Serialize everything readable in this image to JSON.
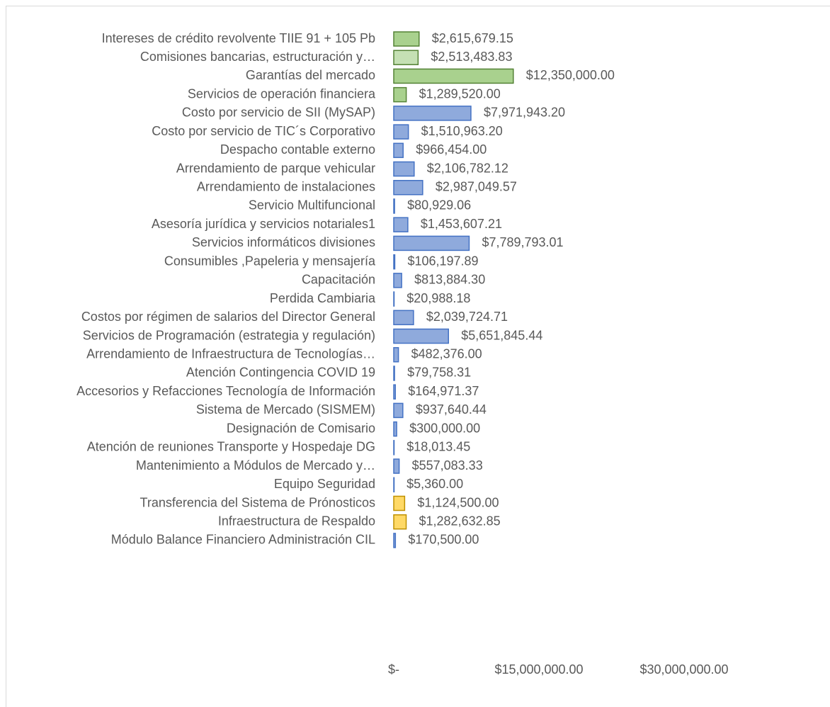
{
  "chart_data": {
    "type": "barh",
    "categories": [
      "Intereses de crédito revolvente TIIE 91 + 105 Pb",
      "Comisiones bancarias,  estructuración y…",
      "Garantías del mercado",
      "Servicios de operación financiera",
      "Costo por servicio de SII (MySAP)",
      "Costo por servicio de TIC´s Corporativo",
      "Despacho contable externo",
      "Arrendamiento de parque vehicular",
      "Arrendamiento de instalaciones ",
      "Servicio Multifuncional",
      "Asesoría jurídica y servicios notariales1",
      "Servicios informáticos divisiones",
      "Consumibles ,Papeleria y mensajería",
      "Capacitación",
      "Perdida Cambiaria",
      "Costos por régimen de salarios del Director General",
      "Servicios de Programación (estrategia y regulación)",
      "Arrendamiento de Infraestructura de Tecnologías…",
      "Atención Contingencia COVID 19",
      "Accesorios y Refacciones Tecnología de Información",
      "Sistema de Mercado (SISMEM)",
      "Designación de Comisario",
      "Atención de reuniones Transporte y Hospedaje DG",
      "Mantenimiento a Módulos de Mercado y…",
      "Equipo Seguridad",
      "Transferencia del Sistema de Prónosticos",
      "Infraestructura de Respaldo",
      "Módulo Balance Financiero Administración CIL"
    ],
    "values": [
      2615679.15,
      2513483.83,
      12350000.0,
      1289520.0,
      7971943.2,
      1510963.2,
      966454.0,
      2106782.12,
      2987049.57,
      80929.06,
      1453607.21,
      7789793.01,
      106197.89,
      813884.3,
      20988.18,
      2039724.71,
      5651845.44,
      482376.0,
      79758.31,
      164971.37,
      937640.44,
      300000.0,
      18013.45,
      557083.33,
      5360.0,
      1124500.0,
      1282632.85,
      170500.0
    ],
    "value_labels": [
      "$2,615,679.15",
      "$2,513,483.83",
      "$12,350,000.00",
      "$1,289,520.00",
      "$7,971,943.20",
      "$1,510,963.20",
      "$966,454.00",
      "$2,106,782.12",
      "$2,987,049.57",
      "$80,929.06",
      "$1,453,607.21",
      "$7,789,793.01",
      "$106,197.89",
      "$813,884.30",
      "$20,988.18",
      "$2,039,724.71",
      "$5,651,845.44",
      "$482,376.00",
      "$79,758.31",
      "$164,971.37",
      "$937,640.44",
      "$300,000.00",
      "$18,013.45",
      "$557,083.33",
      "$5,360.00",
      "$1,124,500.00",
      "$1,282,632.85",
      "$170,500.00"
    ],
    "colors": [
      "#a9d18e",
      "#c5e0b4",
      "#a9d18e",
      "#a9d18e",
      "#8faadc",
      "#8faadc",
      "#8faadc",
      "#8faadc",
      "#8faadc",
      "#8faadc",
      "#8faadc",
      "#8faadc",
      "#8faadc",
      "#8faadc",
      "#8faadc",
      "#8faadc",
      "#8faadc",
      "#8faadc",
      "#8faadc",
      "#8faadc",
      "#8faadc",
      "#8faadc",
      "#8faadc",
      "#8faadc",
      "#8faadc",
      "#ffd966",
      "#ffd966",
      "#8faadc"
    ],
    "edgecolors": [
      "#548235",
      "#548235",
      "#548235",
      "#548235",
      "#4472c4",
      "#4472c4",
      "#4472c4",
      "#4472c4",
      "#4472c4",
      "#4472c4",
      "#4472c4",
      "#4472c4",
      "#4472c4",
      "#4472c4",
      "#4472c4",
      "#4472c4",
      "#4472c4",
      "#4472c4",
      "#4472c4",
      "#4472c4",
      "#4472c4",
      "#4472c4",
      "#4472c4",
      "#4472c4",
      "#4472c4",
      "#bf9000",
      "#bf9000",
      "#4472c4"
    ],
    "xlim": [
      0,
      30000000
    ],
    "xticks": [
      {
        "value": 0,
        "label": "$-"
      },
      {
        "value": 15000000,
        "label": "$15,000,000.00"
      },
      {
        "value": 30000000,
        "label": "$30,000,000.00"
      }
    ]
  }
}
